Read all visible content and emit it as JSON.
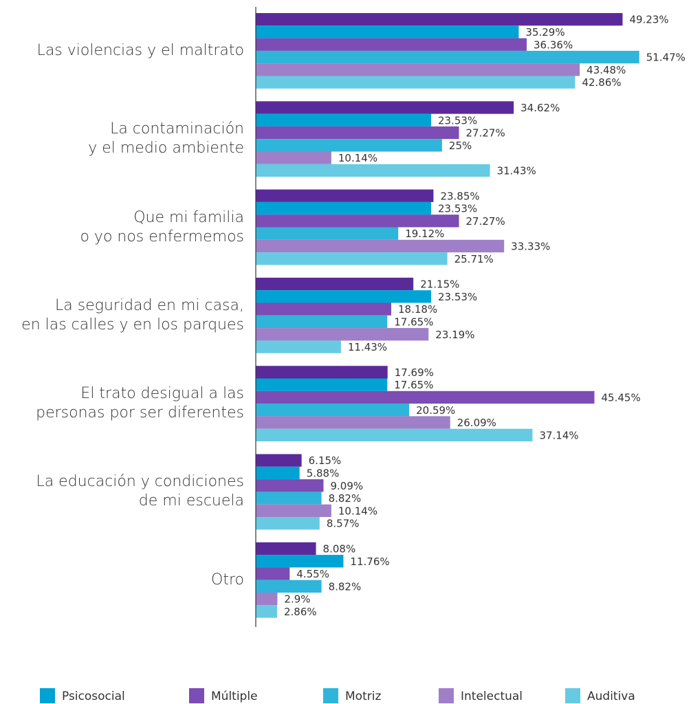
{
  "chart_data": {
    "type": "bar",
    "orientation": "horizontal",
    "categories": [
      "Las violencias y el maltrato",
      "La contaminación\ny el medio ambiente",
      "Que mi familia\no yo nos enfermemos",
      "La seguridad en mi casa,\nen las calles y en los parques",
      "El trato desigual a las\npersonas por ser diferentes",
      "La educación y condiciones\nde mi escuela",
      "Otro"
    ],
    "xlim": [
      0,
      55
    ],
    "series": [
      {
        "color": "#5b2a9a",
        "values": [
          49.23,
          34.62,
          23.85,
          21.15,
          17.69,
          6.15,
          8.08
        ],
        "value_labels": [
          "49.23%",
          "34.62%",
          "23.85%",
          "21.15%",
          "17.69%",
          "6.15%",
          "8.08%"
        ]
      },
      {
        "name": "Psicosocial",
        "color": "#00a3d4",
        "values": [
          35.29,
          23.53,
          23.53,
          23.53,
          17.65,
          5.88,
          11.76
        ],
        "value_labels": [
          "35.29%",
          "23.53%",
          "23.53%",
          "23.53%",
          "17.65%",
          "5.88%",
          "11.76%"
        ]
      },
      {
        "name": "Múltiple",
        "color": "#7c4db4",
        "values": [
          36.36,
          27.27,
          27.27,
          18.18,
          45.45,
          9.09,
          4.55
        ],
        "value_labels": [
          "36.36%",
          "27.27%",
          "27.27%",
          "18.18%",
          "45.45%",
          "9.09%",
          "4.55%"
        ]
      },
      {
        "name": "Motriz",
        "color": "#2fb5da",
        "values": [
          51.47,
          25,
          19.12,
          17.65,
          20.59,
          8.82,
          8.82
        ],
        "value_labels": [
          "51.47%",
          "25%",
          "19.12%",
          "17.65%",
          "20.59%",
          "8.82%",
          "8.82%"
        ]
      },
      {
        "name": "Intelectual",
        "color": "#a07fc9",
        "values": [
          43.48,
          10.14,
          33.33,
          23.19,
          26.09,
          10.14,
          2.9
        ],
        "value_labels": [
          "43.48%",
          "10.14%",
          "33.33%",
          "23.19%",
          "26.09%",
          "10.14%",
          "2.9%"
        ]
      },
      {
        "name": "Auditiva",
        "color": "#66cbe2",
        "values": [
          42.86,
          31.43,
          25.71,
          11.43,
          37.14,
          8.57,
          2.86
        ],
        "value_labels": [
          "42.86%",
          "31.43%",
          "25.71%",
          "11.43%",
          "37.14%",
          "8.57%",
          "2.86%"
        ]
      }
    ]
  }
}
